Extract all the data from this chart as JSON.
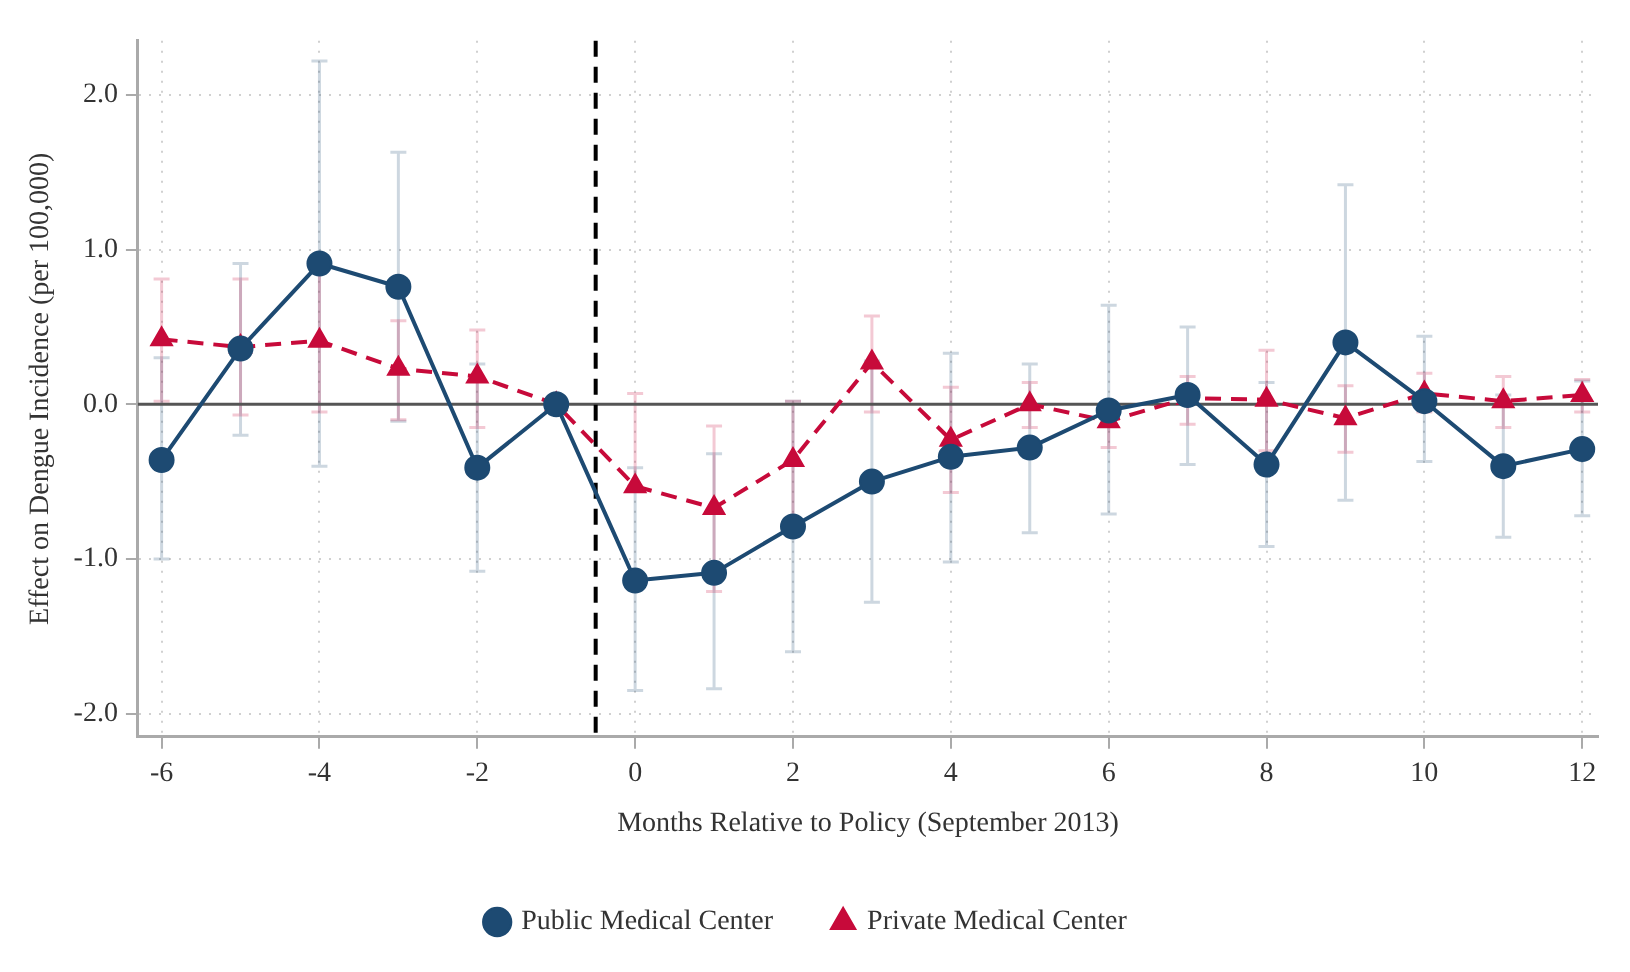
{
  "chart_data": {
    "type": "line",
    "xlabel": "Months Relative to Policy (September 2013)",
    "ylabel": "Effect on Dengue Incidence (per 100,000)",
    "x": [
      -6,
      -5,
      -4,
      -3,
      -2,
      -1,
      0,
      1,
      2,
      3,
      4,
      5,
      6,
      7,
      8,
      9,
      10,
      11,
      12
    ],
    "series": [
      {
        "name": "Public Medical Center",
        "color": "#1d4a72",
        "marker": "circle",
        "line_style": "solid",
        "values": [
          -0.36,
          0.36,
          0.91,
          0.76,
          -0.41,
          0,
          -1.14,
          -1.09,
          -0.79,
          -0.5,
          -0.34,
          -0.28,
          -0.04,
          0.06,
          -0.39,
          0.4,
          0.02,
          -0.4,
          -0.29
        ],
        "errors": [
          [
            -1.0,
            0.3
          ],
          [
            -0.2,
            0.91
          ],
          [
            -0.4,
            2.22
          ],
          [
            -0.11,
            1.63
          ],
          [
            -1.08,
            0.26
          ],
          null,
          [
            -1.85,
            -0.41
          ],
          [
            -1.84,
            -0.32
          ],
          [
            -1.6,
            0.02
          ],
          [
            -1.28,
            0.28
          ],
          [
            -1.02,
            0.33
          ],
          [
            -0.83,
            0.26
          ],
          [
            -0.71,
            0.64
          ],
          [
            -0.39,
            0.5
          ],
          [
            -0.92,
            0.14
          ],
          [
            -0.62,
            1.42
          ],
          [
            -0.37,
            0.44
          ],
          [
            -0.86,
            0.06
          ],
          [
            -0.72,
            0.15
          ]
        ]
      },
      {
        "name": "Private Medical Center",
        "color": "#c70a3a",
        "marker": "triangle",
        "line_style": "dashed",
        "values": [
          0.42,
          0.37,
          0.41,
          0.23,
          0.18,
          0,
          -0.53,
          -0.67,
          -0.36,
          0.27,
          -0.23,
          0.0,
          -0.11,
          0.04,
          0.03,
          -0.09,
          0.07,
          0.02,
          0.06
        ],
        "errors": [
          [
            0.02,
            0.81
          ],
          [
            -0.07,
            0.81
          ],
          [
            -0.05,
            0.87
          ],
          [
            -0.1,
            0.54
          ],
          [
            -0.15,
            0.48
          ],
          null,
          [
            -0.53,
            0.07
          ],
          [
            -1.21,
            -0.14
          ],
          [
            -0.74,
            0.02
          ],
          [
            -0.05,
            0.57
          ],
          [
            -0.57,
            0.11
          ],
          [
            -0.15,
            0.14
          ],
          [
            -0.28,
            0.02
          ],
          [
            -0.13,
            0.18
          ],
          [
            -0.3,
            0.35
          ],
          [
            -0.31,
            0.12
          ],
          [
            -0.05,
            0.2
          ],
          [
            -0.15,
            0.18
          ],
          [
            -0.05,
            0.16
          ]
        ]
      }
    ],
    "xlim": [
      -6.3,
      12.2
    ],
    "xticks": [
      -6,
      -4,
      -2,
      0,
      2,
      4,
      6,
      8,
      10,
      12
    ],
    "ylim": [
      -2.15,
      2.35
    ],
    "yticks": [
      {
        "value": 2,
        "label": "2.0"
      },
      {
        "value": 1,
        "label": "1.0"
      },
      {
        "value": 0,
        "label": "0.0"
      },
      {
        "value": -1,
        "label": "-1.0"
      },
      {
        "value": -2,
        "label": "-2.0"
      }
    ],
    "ref_lines": [
      {
        "axis": "y",
        "value": 0,
        "color": "#555555",
        "line_style": "solid"
      },
      {
        "axis": "x",
        "value": -0.5,
        "color": "#000000",
        "line_style": "dashed"
      }
    ],
    "grid": true,
    "legend": "bottom"
  }
}
